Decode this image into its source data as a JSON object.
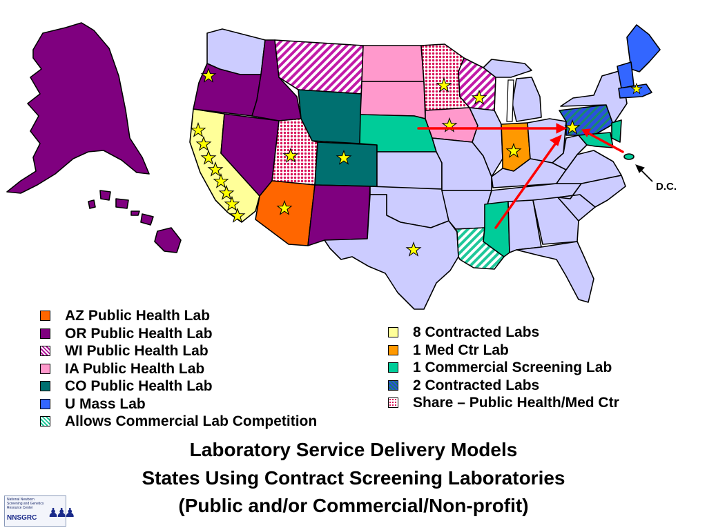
{
  "map": {
    "callout": "D.C.",
    "colors": {
      "purple": "#7f007f",
      "orange": "#ff6600",
      "teal_dark": "#007070",
      "pink": "#ff99cc",
      "yellow": "#ffff99",
      "light_orange": "#ff9900",
      "green_commercial": "#00cc99",
      "blue_umass": "#3366ff",
      "lavender_other": "#ccccff",
      "arrow": "#ff0000",
      "star": "#ffff00"
    }
  },
  "legend_left": [
    {
      "label": "AZ Public Health Lab",
      "swatch": "#ff6600",
      "pattern": "solid"
    },
    {
      "label": "OR Public Health Lab",
      "swatch": "#7f007f",
      "pattern": "solid"
    },
    {
      "label": "WI Public Health Lab",
      "swatch": "#cc33cc",
      "pattern": "stripe-pink"
    },
    {
      "label": "IA Public Health Lab",
      "swatch": "#ff99cc",
      "pattern": "solid"
    },
    {
      "label": "CO Public Health Lab",
      "swatch": "#007070",
      "pattern": "solid"
    },
    {
      "label": "U Mass Lab",
      "swatch": "#3366ff",
      "pattern": "solid"
    },
    {
      "label": "Allows Commercial Lab Competition",
      "swatch": "#33cc99",
      "pattern": "stripe-teal"
    }
  ],
  "legend_right": [
    {
      "label": "8 Contracted Labs",
      "swatch": "#ffff99",
      "pattern": "solid"
    },
    {
      "label": "1 Med Ctr Lab",
      "swatch": "#ff9900",
      "pattern": "solid"
    },
    {
      "label": "1 Commercial Screening  Lab",
      "swatch": "#00cc99",
      "pattern": "solid"
    },
    {
      "label": "2 Contracted Labs",
      "swatch": "#3366ff",
      "pattern": "stripe-blue"
    },
    {
      "label": "Share – Public Health/Med Ctr",
      "swatch": "#ff3366",
      "pattern": "check"
    }
  ],
  "title": {
    "line1": "Laboratory Service Delivery Models",
    "line2": "States Using Contract Screening Laboratories",
    "line3": "(Public and/or Commercial/Non-profit)"
  },
  "logo": {
    "name": "National Newborn Screening and Genetics Resource Center",
    "acronym": "NNSGRC"
  }
}
